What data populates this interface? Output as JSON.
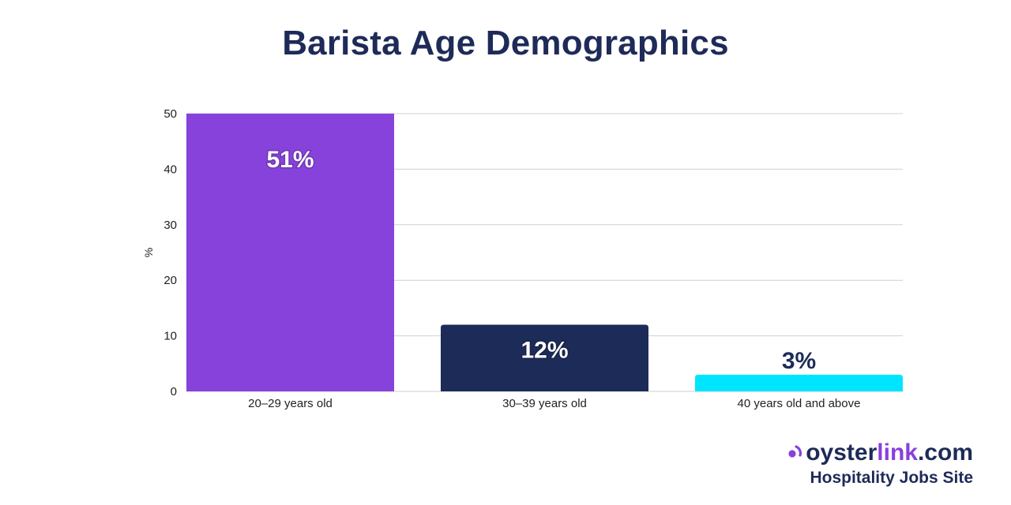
{
  "chart_data": {
    "type": "bar",
    "title": "Barista Age Demographics",
    "xlabel": "",
    "ylabel": "%",
    "ylim": [
      0,
      50
    ],
    "yticks": [
      0,
      10,
      20,
      30,
      40,
      50
    ],
    "grid": true,
    "categories": [
      "20–29 years old",
      "30–39 years old",
      "40 years old and above"
    ],
    "values": [
      51,
      12,
      3
    ],
    "data_labels": [
      "51%",
      "12%",
      "3%"
    ],
    "colors": [
      "#8742dc",
      "#1d2b58",
      "#00e5ff"
    ],
    "label_colors": [
      "#ffffff",
      "#ffffff",
      "#1d2b58"
    ]
  },
  "brand": {
    "part1": "oyster",
    "part2": "link",
    "part3": ".com",
    "tagline": "Hospitality Jobs Site",
    "accent_color": "#8a3fdc",
    "icon": "oysterlink-logo-icon"
  }
}
